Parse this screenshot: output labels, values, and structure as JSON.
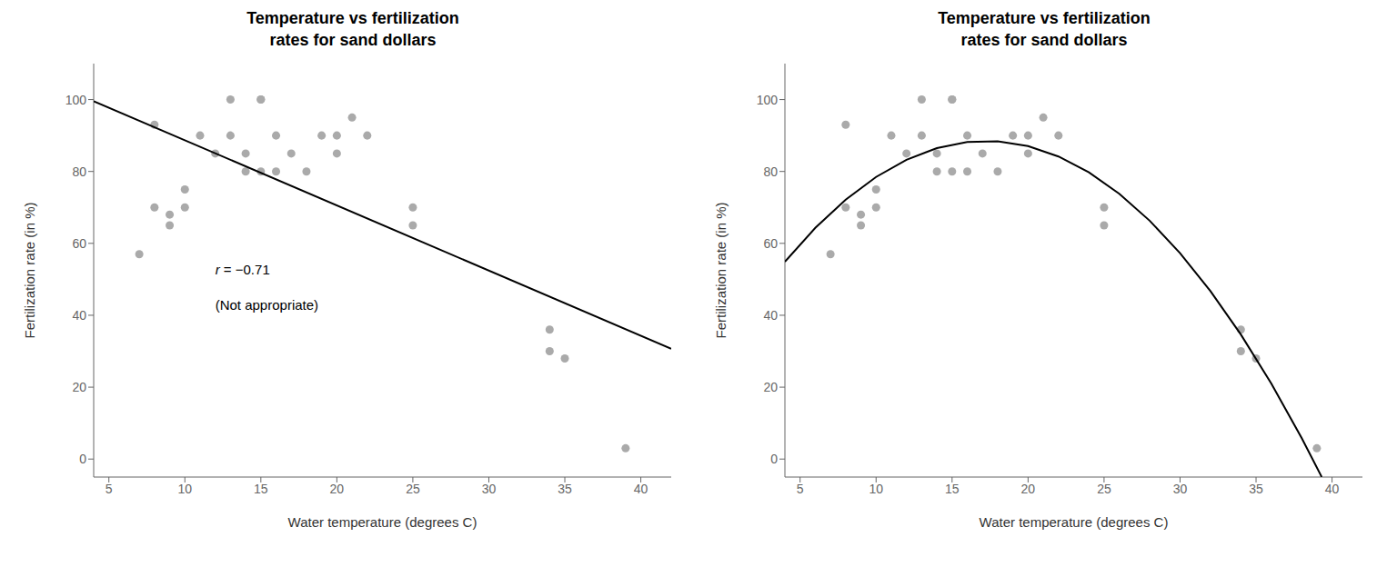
{
  "chart_data": [
    {
      "type": "scatter",
      "title": "Temperature vs fertilization\nrates for sand dollars",
      "xlabel": "Water temperature (degrees C)",
      "ylabel": "Fertilization rate (in %)",
      "xlim": [
        4,
        42
      ],
      "ylim": [
        -5,
        110
      ],
      "xticks": [
        5,
        10,
        15,
        20,
        25,
        30,
        35,
        40
      ],
      "yticks": [
        0,
        20,
        40,
        60,
        80,
        100
      ],
      "grid": false,
      "series": [
        {
          "type": "scatter",
          "color": "#aaaaaa",
          "x": [
            7,
            8,
            8,
            9,
            9,
            10,
            10,
            11,
            12,
            13,
            13,
            14,
            14,
            15,
            15,
            15,
            16,
            16,
            17,
            18,
            19,
            20,
            20,
            21,
            22,
            25,
            25,
            34,
            34,
            35,
            39
          ],
          "values": [
            57,
            93,
            70,
            68,
            65,
            70,
            75,
            90,
            85,
            100,
            90,
            85,
            80,
            100,
            100,
            80,
            90,
            80,
            85,
            80,
            90,
            90,
            85,
            95,
            90,
            65,
            70,
            36,
            30,
            28,
            3
          ]
        },
        {
          "type": "line",
          "color": "#000000",
          "x": [
            4,
            42
          ],
          "values": [
            99.55,
            30.68
          ]
        }
      ],
      "annotations": [
        {
          "text": "r = −0.71",
          "x": 12,
          "y": 53
        },
        {
          "text": "(Not appropriate)",
          "x": 12,
          "y": 43
        }
      ]
    },
    {
      "type": "scatter",
      "title": "Temperature vs fertilization\nrates for sand dollars",
      "xlabel": "Water temperature (degrees C)",
      "ylabel": "Fertilization rate (in %)",
      "xlim": [
        4,
        42
      ],
      "ylim": [
        -5,
        110
      ],
      "xticks": [
        5,
        10,
        15,
        20,
        25,
        30,
        35,
        40
      ],
      "yticks": [
        0,
        20,
        40,
        60,
        80,
        100
      ],
      "grid": false,
      "series": [
        {
          "type": "scatter",
          "color": "#aaaaaa",
          "x": [
            7,
            8,
            8,
            9,
            9,
            10,
            10,
            11,
            12,
            13,
            13,
            14,
            14,
            15,
            15,
            15,
            16,
            16,
            17,
            18,
            19,
            20,
            20,
            21,
            22,
            25,
            25,
            34,
            34,
            35,
            39
          ],
          "values": [
            57,
            93,
            70,
            68,
            65,
            70,
            75,
            90,
            85,
            100,
            90,
            85,
            80,
            100,
            100,
            80,
            90,
            80,
            85,
            80,
            90,
            90,
            85,
            95,
            90,
            65,
            70,
            36,
            30,
            28,
            3
          ]
        },
        {
          "type": "line",
          "color": "#000000",
          "x": [
            4,
            6,
            8,
            10,
            12,
            14,
            16,
            18,
            20,
            22,
            24,
            26,
            28,
            30,
            32,
            34,
            36,
            38,
            39.32
          ],
          "values": [
            54.91,
            64.3,
            72.15,
            78.47,
            83.25,
            86.5,
            88.22,
            88.4,
            87.05,
            84.16,
            79.75,
            73.79,
            66.31,
            57.29,
            46.73,
            34.65,
            21.02,
            5.87,
            -4.97
          ]
        }
      ]
    }
  ]
}
